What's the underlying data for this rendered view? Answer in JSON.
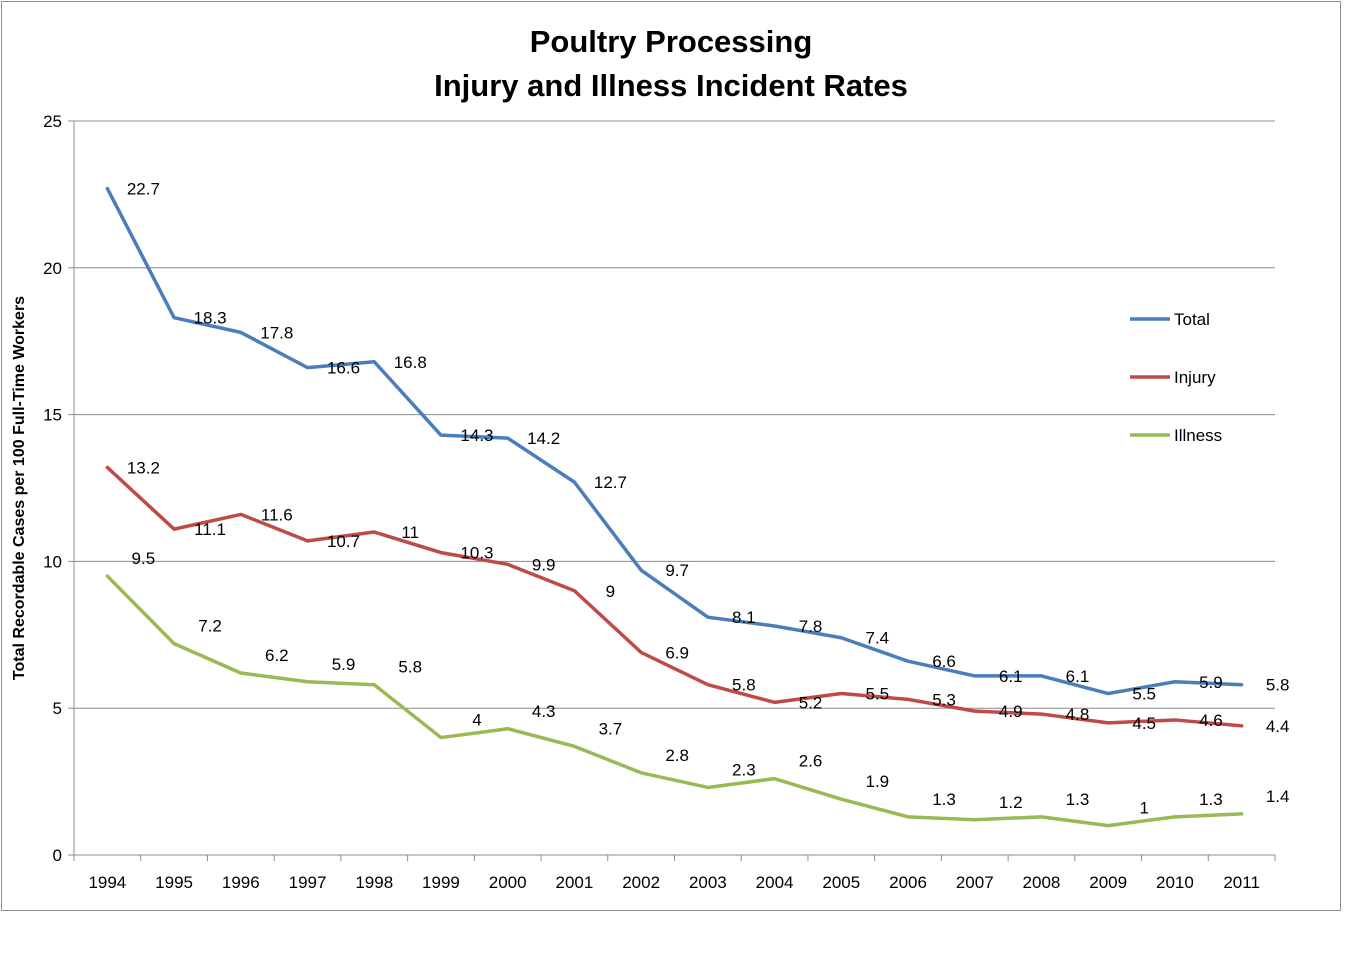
{
  "chart_data": {
    "type": "line",
    "title": [
      "Poultry Processing",
      "Injury and Illness Incident Rates"
    ],
    "xlabel": "",
    "ylabel": "Total Recordable Cases per 100 Full-Time Workers",
    "ylim": [
      0,
      25
    ],
    "yticks": [
      0,
      5,
      10,
      15,
      20,
      25
    ],
    "grid": true,
    "legend_position": "right",
    "categories": [
      "1994",
      "1995",
      "1996",
      "1997",
      "1998",
      "1999",
      "2000",
      "2001",
      "2002",
      "2003",
      "2004",
      "2005",
      "2006",
      "2007",
      "2008",
      "2009",
      "2010",
      "2011"
    ],
    "series": [
      {
        "name": "Total",
        "color": "#4a7ebb",
        "values": [
          22.7,
          18.3,
          17.8,
          16.6,
          16.8,
          14.3,
          14.2,
          12.7,
          9.7,
          8.1,
          7.8,
          7.4,
          6.6,
          6.1,
          6.1,
          5.5,
          5.9,
          5.8
        ],
        "labels": [
          "22.7",
          "18.3",
          "17.8",
          "16.6",
          "16.8",
          "14.3",
          "14.2",
          "12.7",
          "9.7",
          "8.1",
          "7.8",
          "7.4",
          "6.6",
          "6.1",
          "6.1",
          "5.5",
          "5.9",
          "5.8"
        ]
      },
      {
        "name": "Injury",
        "color": "#be4b48",
        "values": [
          13.2,
          11.1,
          11.6,
          10.7,
          11,
          10.3,
          9.9,
          9,
          6.9,
          5.8,
          5.2,
          5.5,
          5.3,
          4.9,
          4.8,
          4.5,
          4.6,
          4.4
        ],
        "labels": [
          "13.2",
          "11.1",
          "11.6",
          "10.7",
          "11",
          "10.3",
          "9.9",
          "9",
          "6.9",
          "5.8",
          "5.2",
          "5.5",
          "5.3",
          "4.9",
          "4.8",
          "4.5",
          "4.6",
          "4.4"
        ]
      },
      {
        "name": "Illness",
        "color": "#98b954",
        "values": [
          9.5,
          7.2,
          6.2,
          5.9,
          5.8,
          4,
          4.3,
          3.7,
          2.8,
          2.3,
          2.6,
          1.9,
          1.3,
          1.2,
          1.3,
          1,
          1.3,
          1.4
        ],
        "labels": [
          "9.5",
          "7.2",
          "6.2",
          "5.9",
          "5.8",
          "4",
          "4.3",
          "3.7",
          "2.8",
          "2.3",
          "2.6",
          "1.9",
          "1.3",
          "1.2",
          "1.3",
          "1",
          "1.3",
          "1.4"
        ]
      }
    ]
  }
}
